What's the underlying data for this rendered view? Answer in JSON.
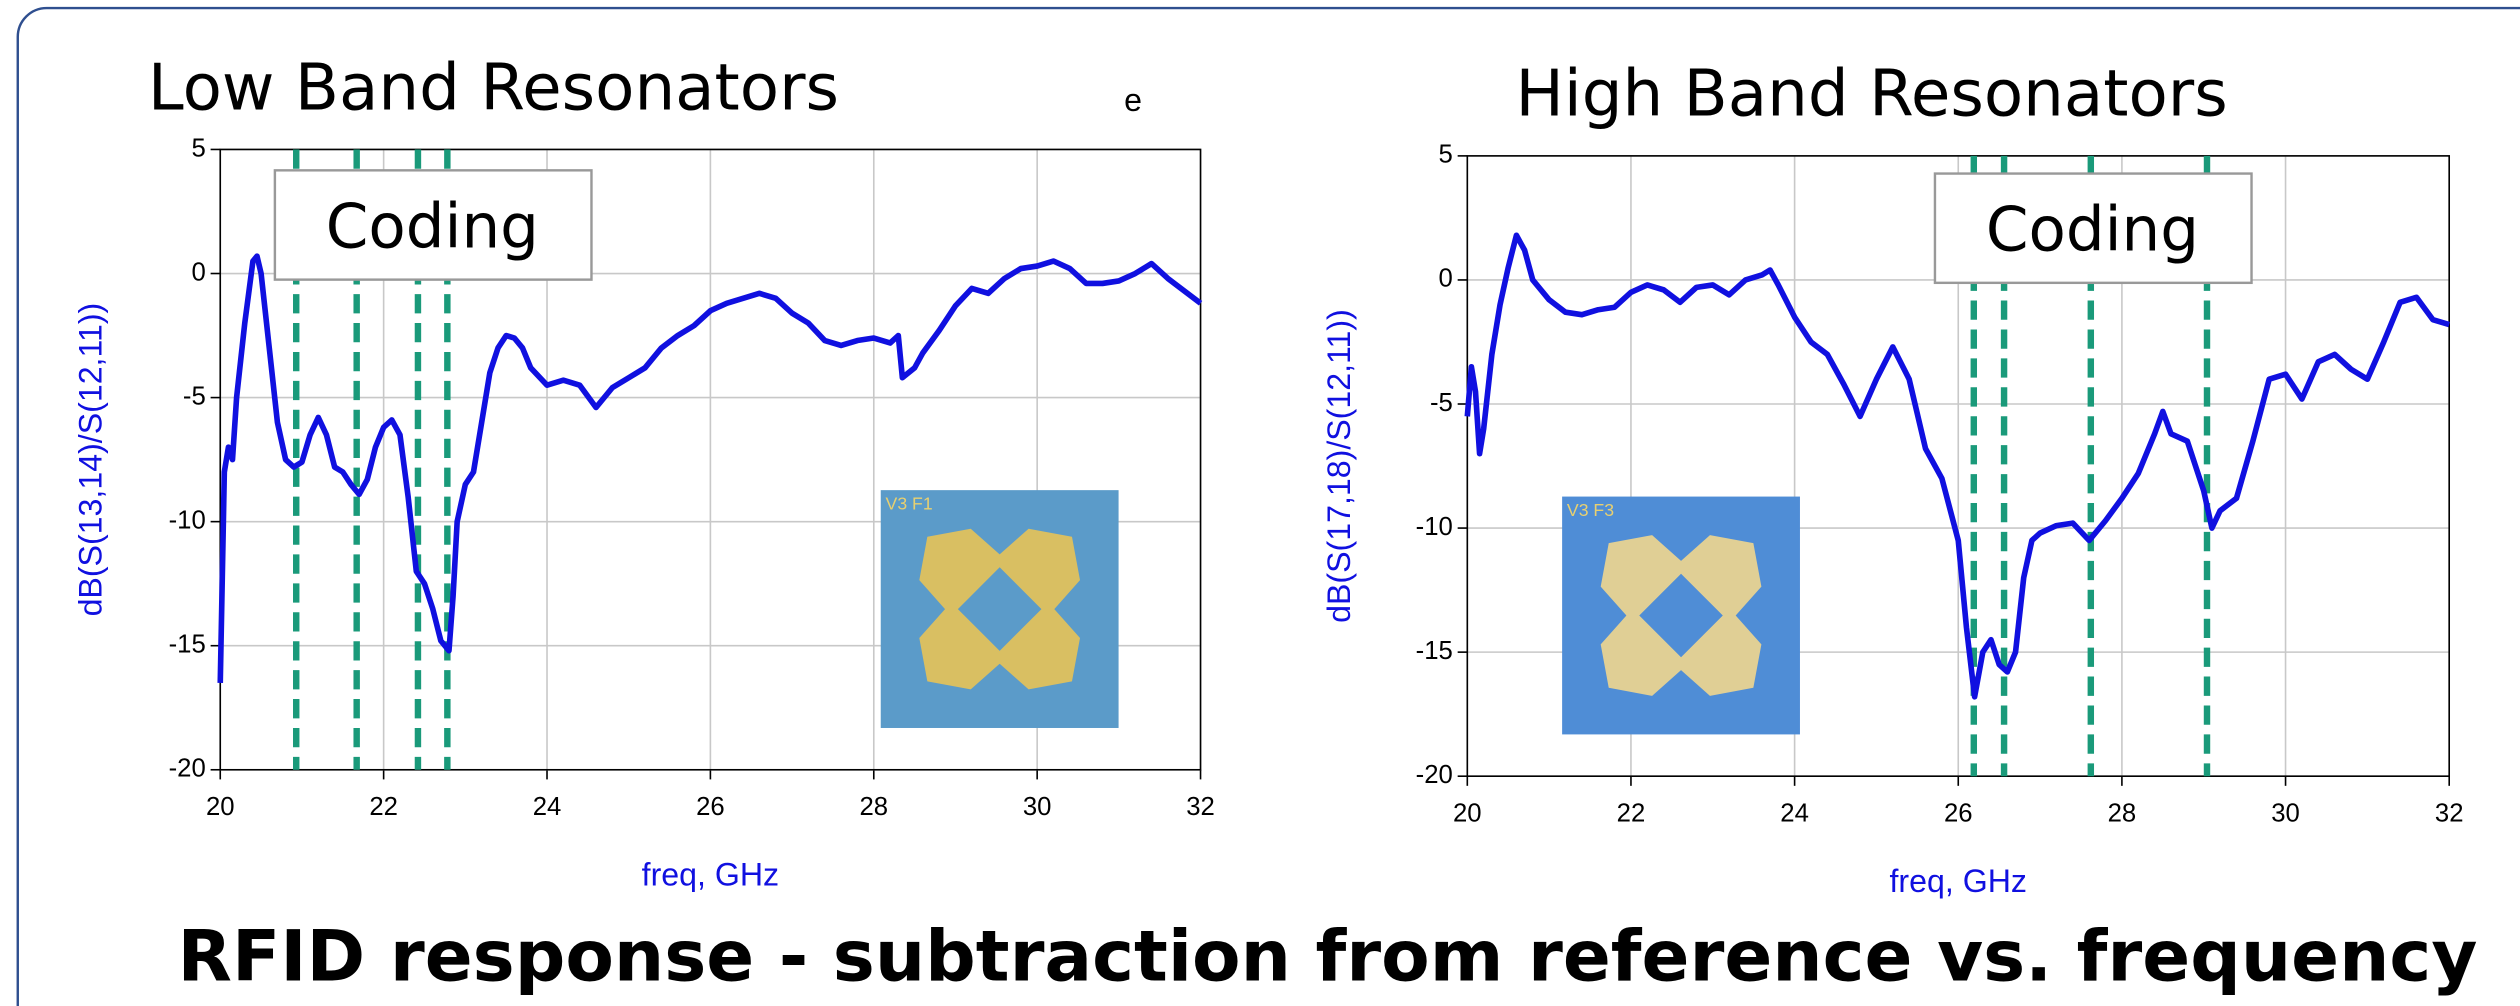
{
  "caption": "RFID response - subtraction from reference vs. frequency",
  "chart_data": [
    {
      "type": "line",
      "title": "Low Band Resonators",
      "note": "e",
      "xlabel": "freq, GHz",
      "ylabel": "dB(S(13,14)/S(12,11))",
      "annotation": "Coding",
      "inset_label": "V3  F1",
      "xlim": [
        20,
        32
      ],
      "xticks": [
        20,
        22,
        24,
        26,
        28,
        30,
        32
      ],
      "ylim": [
        -20,
        5
      ],
      "yticks": [
        -20,
        -15,
        -10,
        -5,
        0,
        5
      ],
      "grid": true,
      "color": "#1010e0",
      "vline_color": "#1a9a7a",
      "vlines": [
        20.93,
        21.67,
        22.42,
        22.78
      ],
      "x": [
        20.0,
        20.05,
        20.1,
        20.15,
        20.2,
        20.3,
        20.4,
        20.45,
        20.5,
        20.6,
        20.7,
        20.8,
        20.9,
        21.0,
        21.1,
        21.2,
        21.3,
        21.4,
        21.5,
        21.6,
        21.7,
        21.8,
        21.9,
        22.0,
        22.1,
        22.2,
        22.3,
        22.4,
        22.5,
        22.6,
        22.7,
        22.8,
        22.85,
        22.9,
        23.0,
        23.1,
        23.2,
        23.3,
        23.4,
        23.5,
        23.6,
        23.7,
        23.8,
        24.0,
        24.2,
        24.4,
        24.6,
        24.8,
        25.0,
        25.2,
        25.4,
        25.6,
        25.8,
        26.0,
        26.2,
        26.4,
        26.6,
        26.8,
        27.0,
        27.2,
        27.4,
        27.6,
        27.8,
        28.0,
        28.2,
        28.3,
        28.35,
        28.5,
        28.6,
        28.8,
        29.0,
        29.2,
        29.4,
        29.6,
        29.8,
        30.0,
        30.2,
        30.4,
        30.6,
        30.8,
        31.0,
        31.2,
        31.4,
        31.6,
        31.8,
        32.0
      ],
      "values": [
        -16.5,
        -8,
        -7,
        -7.5,
        -5,
        -2,
        0.5,
        0.7,
        0,
        -3,
        -6,
        -7.5,
        -7.8,
        -7.6,
        -6.5,
        -5.8,
        -6.5,
        -7.8,
        -8,
        -8.5,
        -8.9,
        -8.3,
        -7,
        -6.2,
        -5.9,
        -6.5,
        -9,
        -12,
        -12.5,
        -13.5,
        -14.8,
        -15.2,
        -13,
        -10,
        -8.5,
        -8,
        -6,
        -4,
        -3,
        -2.5,
        -2.6,
        -3,
        -3.8,
        -4.5,
        -4.3,
        -4.5,
        -5.4,
        -4.6,
        -4.2,
        -3.8,
        -3,
        -2.5,
        -2.1,
        -1.5,
        -1.2,
        -1.0,
        -0.8,
        -1.0,
        -1.6,
        -2.0,
        -2.7,
        -2.9,
        -2.7,
        -2.6,
        -2.8,
        -2.5,
        -4.2,
        -3.8,
        -3.2,
        -2.3,
        -1.3,
        -0.6,
        -0.8,
        -0.2,
        0.2,
        0.3,
        0.5,
        0.2,
        -0.4,
        -0.4,
        -0.3,
        0.0,
        0.4,
        -0.2,
        -0.7,
        -1.2
      ]
    },
    {
      "type": "line",
      "title": "High Band Resonators",
      "xlabel": "freq, GHz",
      "ylabel": "dB(S(17,18)/S(12,11))",
      "annotation": "Coding",
      "inset_label": "V3  F3",
      "xlim": [
        20,
        32
      ],
      "xticks": [
        20,
        22,
        24,
        26,
        28,
        30,
        32
      ],
      "ylim": [
        -20,
        5
      ],
      "yticks": [
        -20,
        -15,
        -10,
        -5,
        0,
        5
      ],
      "grid": true,
      "color": "#1010e0",
      "vline_color": "#1a9a7a",
      "vlines": [
        26.19,
        26.56,
        27.62,
        29.04
      ],
      "x": [
        20.0,
        20.05,
        20.1,
        20.15,
        20.2,
        20.3,
        20.4,
        20.5,
        20.6,
        20.7,
        20.8,
        21.0,
        21.2,
        21.4,
        21.6,
        21.8,
        22.0,
        22.2,
        22.4,
        22.6,
        22.8,
        23.0,
        23.2,
        23.4,
        23.6,
        23.7,
        23.8,
        24.0,
        24.2,
        24.4,
        24.6,
        24.8,
        25.0,
        25.2,
        25.4,
        25.6,
        25.8,
        26.0,
        26.1,
        26.2,
        26.3,
        26.4,
        26.5,
        26.6,
        26.7,
        26.8,
        26.9,
        27.0,
        27.2,
        27.4,
        27.6,
        27.8,
        28.0,
        28.2,
        28.4,
        28.5,
        28.6,
        28.8,
        29.0,
        29.1,
        29.2,
        29.4,
        29.6,
        29.8,
        30.0,
        30.2,
        30.4,
        30.6,
        30.8,
        31.0,
        31.2,
        31.4,
        31.6,
        31.8,
        32.0
      ],
      "values": [
        -5.5,
        -3.5,
        -4.5,
        -7,
        -6,
        -3,
        -1,
        0.5,
        1.8,
        1.2,
        0,
        -0.8,
        -1.3,
        -1.4,
        -1.2,
        -1.1,
        -0.5,
        -0.2,
        -0.4,
        -0.9,
        -0.3,
        -0.2,
        -0.6,
        0.0,
        0.2,
        0.4,
        -0.2,
        -1.5,
        -2.5,
        -3,
        -4.2,
        -5.5,
        -4,
        -2.7,
        -4,
        -6.8,
        -8,
        -10.5,
        -14,
        -16.8,
        -15,
        -14.5,
        -15.5,
        -15.8,
        -15,
        -12,
        -10.5,
        -10.2,
        -9.9,
        -9.8,
        -10.5,
        -9.7,
        -8.8,
        -7.8,
        -6.2,
        -5.3,
        -6.2,
        -6.5,
        -8.5,
        -10,
        -9.3,
        -8.8,
        -6.5,
        -4.0,
        -3.8,
        -4.8,
        -3.3,
        -3.0,
        -3.6,
        -4.0,
        -2.5,
        -0.9,
        -0.7,
        -1.6,
        -1.8
      ]
    }
  ]
}
